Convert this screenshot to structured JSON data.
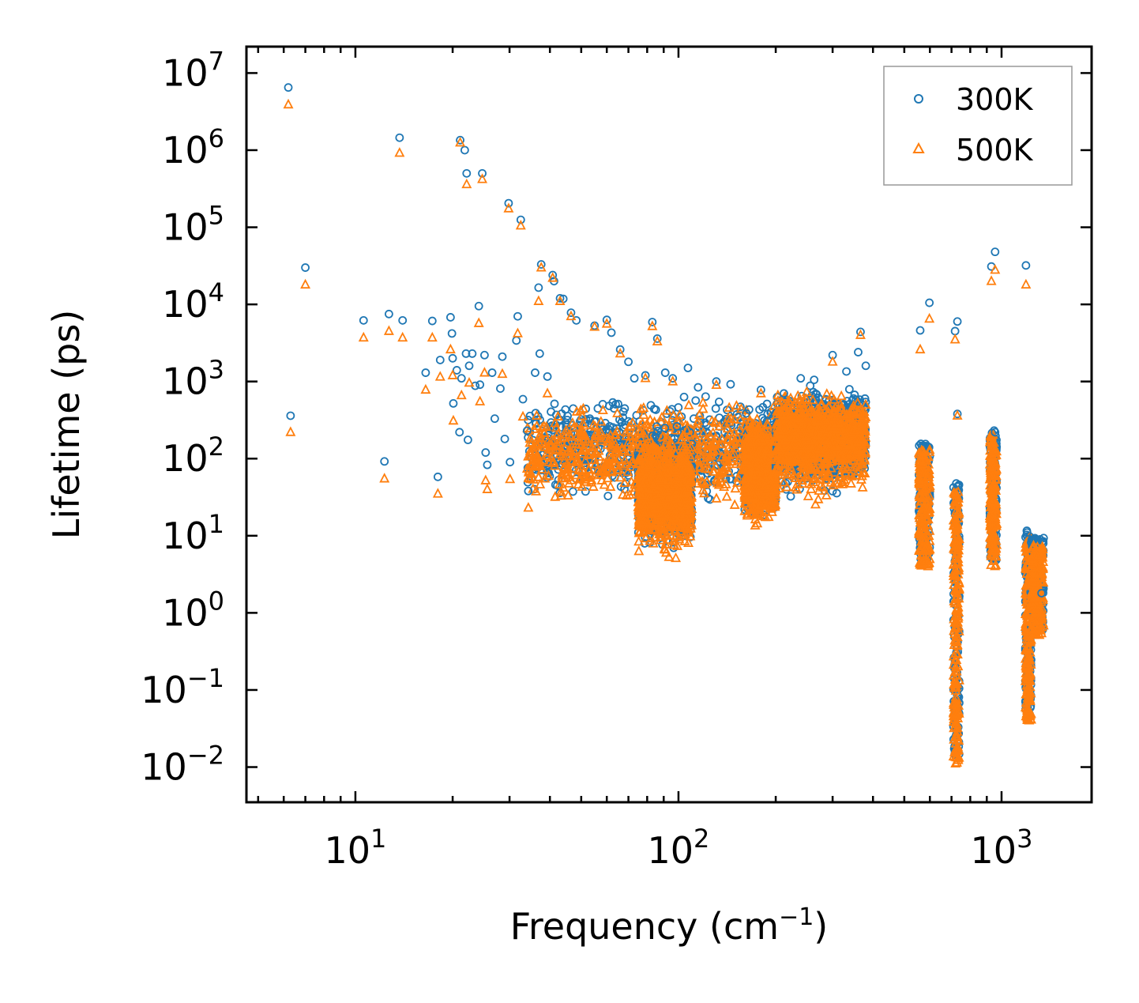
{
  "chart_data": {
    "type": "scatter",
    "xscale": "log",
    "yscale": "log",
    "xlabel": "Frequency (cm",
    "xlabel_sup": "−1",
    "xlabel_end": ")",
    "ylabel": "Lifetime (ps)",
    "xlim": [
      4.6,
      1900
    ],
    "ylim": [
      0.0035,
      22000000
    ],
    "x_ticks": [
      {
        "value": 10,
        "base": "10",
        "exp": "1"
      },
      {
        "value": 100,
        "base": "10",
        "exp": "2"
      },
      {
        "value": 1000,
        "base": "10",
        "exp": "3"
      }
    ],
    "y_ticks": [
      {
        "value": 10000000,
        "base": "10",
        "exp": "7"
      },
      {
        "value": 1000000,
        "base": "10",
        "exp": "6"
      },
      {
        "value": 100000,
        "base": "10",
        "exp": "5"
      },
      {
        "value": 10000,
        "base": "10",
        "exp": "4"
      },
      {
        "value": 1000,
        "base": "10",
        "exp": "3"
      },
      {
        "value": 100,
        "base": "10",
        "exp": "2"
      },
      {
        "value": 10,
        "base": "10",
        "exp": "1"
      },
      {
        "value": 1,
        "base": "10",
        "exp": "0"
      },
      {
        "value": 0.1,
        "base": "10",
        "exp": "−1"
      },
      {
        "value": 0.01,
        "base": "10",
        "exp": "−2"
      }
    ],
    "legend": {
      "position": "top-right",
      "entries": [
        {
          "label": "300K",
          "marker": "circle",
          "color": "#1f77b4"
        },
        {
          "label": "500K",
          "marker": "triangle",
          "color": "#ff7f0e"
        }
      ]
    },
    "series": [
      {
        "name": "300K",
        "marker": "circle",
        "color": "#1f77b4",
        "points": [
          [
            6.2,
            6500000
          ],
          [
            6.3,
            360
          ],
          [
            7.0,
            30000
          ],
          [
            10.6,
            6200
          ],
          [
            12.3,
            92
          ],
          [
            12.7,
            7500
          ],
          [
            13.7,
            1450000
          ],
          [
            14.0,
            6200
          ],
          [
            16.5,
            1300
          ],
          [
            17.3,
            6100
          ],
          [
            18.0,
            58
          ],
          [
            18.3,
            1900
          ],
          [
            19.7,
            6800
          ],
          [
            19.9,
            4200
          ],
          [
            20.0,
            2000
          ],
          [
            20.1,
            520
          ],
          [
            20.6,
            1400
          ],
          [
            21.0,
            220
          ],
          [
            21.1,
            1350000
          ],
          [
            21.3,
            1100
          ],
          [
            21.8,
            1000000
          ],
          [
            22.0,
            2300
          ],
          [
            22.1,
            500000
          ],
          [
            22.3,
            175
          ],
          [
            22.5,
            1600
          ],
          [
            23.0,
            2300
          ],
          [
            23.5,
            880
          ],
          [
            24.1,
            9500
          ],
          [
            24.3,
            910
          ],
          [
            24.7,
            500000
          ],
          [
            25.1,
            2200
          ],
          [
            25.3,
            120
          ],
          [
            25.6,
            83
          ],
          [
            26.5,
            1300
          ],
          [
            27.0,
            330
          ],
          [
            28.1,
            810
          ],
          [
            28.5,
            2100
          ],
          [
            29.0,
            180
          ],
          [
            29.8,
            205000
          ],
          [
            30.1,
            90
          ],
          [
            31.5,
            3400
          ],
          [
            31.8,
            7000
          ],
          [
            32.5,
            125000
          ],
          [
            33.0,
            590
          ],
          [
            34.0,
            230
          ],
          [
            34.3,
            38
          ],
          [
            36.0,
            1300
          ],
          [
            36.9,
            16500
          ],
          [
            37.2,
            2300
          ],
          [
            37.6,
            33000
          ],
          [
            39.3,
            1160
          ],
          [
            40.8,
            24000
          ],
          [
            41.2,
            20000
          ],
          [
            43.0,
            12000
          ],
          [
            44.0,
            11800
          ],
          [
            46.5,
            7800
          ],
          [
            48.3,
            6200
          ],
          [
            55.0,
            5300
          ],
          [
            60.0,
            6300
          ],
          [
            62.0,
            4300
          ],
          [
            66.0,
            2600
          ],
          [
            70.0,
            1800
          ],
          [
            73.0,
            1100
          ],
          [
            79.0,
            1200
          ],
          [
            83.0,
            5900
          ],
          [
            86.0,
            3600
          ],
          [
            91.0,
            1300
          ],
          [
            96.0,
            1100
          ],
          [
            107.0,
            1500
          ],
          [
            115.0,
            840
          ],
          [
            131.0,
            1000
          ],
          [
            145.0,
            920
          ],
          [
            180.0,
            780
          ],
          [
            212.0,
            700
          ],
          [
            239.0,
            1100
          ],
          [
            263.0,
            1050
          ],
          [
            300.0,
            2200
          ],
          [
            331.0,
            1350
          ],
          [
            360.0,
            2400
          ],
          [
            366.0,
            4400
          ],
          [
            380.0,
            1600
          ],
          [
            560.0,
            4600
          ],
          [
            598.0,
            10500
          ],
          [
            718.0,
            4500
          ],
          [
            730.0,
            6000
          ],
          [
            730.0,
            380
          ],
          [
            930.0,
            31000
          ],
          [
            955.0,
            48000
          ],
          [
            955.0,
            220
          ],
          [
            1190.0,
            32000
          ],
          [
            1200.0,
            11
          ],
          [
            1330.0,
            1.8
          ]
        ]
      },
      {
        "name": "500K",
        "marker": "triangle",
        "color": "#ff7f0e",
        "points": [
          [
            6.2,
            3900000
          ],
          [
            6.3,
            220
          ],
          [
            7.0,
            18000
          ],
          [
            10.6,
            3700
          ],
          [
            12.3,
            55
          ],
          [
            12.7,
            4500
          ],
          [
            13.7,
            920000
          ],
          [
            14.0,
            3700
          ],
          [
            16.5,
            780
          ],
          [
            17.3,
            3700
          ],
          [
            18.0,
            35
          ],
          [
            18.3,
            1150
          ],
          [
            19.7,
            2600
          ],
          [
            20.0,
            1200
          ],
          [
            20.1,
            310
          ],
          [
            21.1,
            1250000
          ],
          [
            21.3,
            660
          ],
          [
            22.1,
            360000
          ],
          [
            22.5,
            960
          ],
          [
            24.1,
            5700
          ],
          [
            24.3,
            550
          ],
          [
            24.7,
            420000
          ],
          [
            25.1,
            1300
          ],
          [
            25.3,
            52
          ],
          [
            25.6,
            40
          ],
          [
            28.5,
            1250
          ],
          [
            29.8,
            175000
          ],
          [
            30.1,
            54
          ],
          [
            31.8,
            4200
          ],
          [
            32.5,
            105000
          ],
          [
            33.0,
            350
          ],
          [
            34.3,
            23
          ],
          [
            36.9,
            11000
          ],
          [
            37.6,
            30000
          ],
          [
            39.3,
            700
          ],
          [
            40.8,
            22000
          ],
          [
            43.0,
            11000
          ],
          [
            46.5,
            7000
          ],
          [
            55.0,
            5100
          ],
          [
            60.0,
            5600
          ],
          [
            66.0,
            2300
          ],
          [
            79.0,
            1100
          ],
          [
            83.0,
            5200
          ],
          [
            86.0,
            3300
          ],
          [
            96.0,
            1000
          ],
          [
            131.0,
            900
          ],
          [
            180.0,
            700
          ],
          [
            300.0,
            1800
          ],
          [
            366.0,
            4000
          ],
          [
            560.0,
            2600
          ],
          [
            598.0,
            6500
          ],
          [
            718.0,
            3500
          ],
          [
            730.0,
            360
          ],
          [
            930.0,
            20000
          ],
          [
            955.0,
            28000
          ],
          [
            1190.0,
            18000
          ],
          [
            1330.0,
            1.0
          ]
        ]
      }
    ],
    "dense_clusters": [
      {
        "x_range": [
          34,
          380
        ],
        "y_center": 75,
        "y_spread": [
          20,
          700
        ]
      },
      {
        "x_range": [
          75,
          110
        ],
        "y_center": 40,
        "y_spread": [
          4.5,
          300
        ]
      },
      {
        "x_range": [
          160,
          200
        ],
        "y_center": 40,
        "y_spread": [
          12,
          400
        ]
      },
      {
        "x_range": [
          200,
          380
        ],
        "y_center": 160,
        "y_spread": [
          40,
          900
        ]
      }
    ],
    "vertical_bands": [
      {
        "x_range": [
          555,
          600
        ],
        "y_range": [
          4,
          130
        ]
      },
      {
        "x_range": [
          710,
          740
        ],
        "y_range": [
          0.011,
          40
        ]
      },
      {
        "x_range": [
          920,
          965
        ],
        "y_range": [
          4,
          210
        ]
      },
      {
        "x_range": [
          1185,
          1235
        ],
        "y_range": [
          0.04,
          10
        ]
      },
      {
        "x_range": [
          1230,
          1350
        ],
        "y_range": [
          0.5,
          8
        ]
      }
    ]
  }
}
